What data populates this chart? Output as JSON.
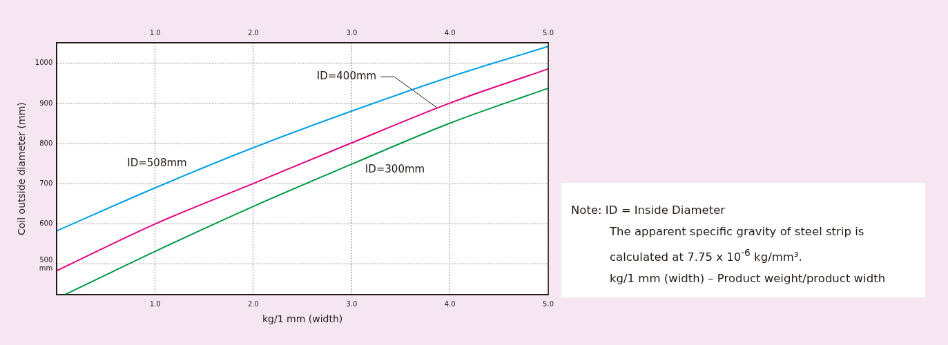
{
  "chart_data": {
    "type": "line",
    "xlabel": "kg/1 mm (width)",
    "ylabel": "Coil outside diameter (mm)",
    "xlim": [
      0,
      5
    ],
    "xticks": [
      {
        "value": 1,
        "label": "1.0"
      },
      {
        "value": 2,
        "label": "2.0"
      },
      {
        "value": 3,
        "label": "3.0"
      },
      {
        "value": 4,
        "label": "4.0"
      },
      {
        "value": 5,
        "label": "5.0"
      }
    ],
    "x2lim": [
      0,
      5
    ],
    "x2ticks": [
      {
        "value": 1,
        "label": "1.0"
      },
      {
        "value": 2,
        "label": "2.0"
      },
      {
        "value": 3,
        "label": "3.0"
      },
      {
        "value": 4,
        "label": "4.0"
      },
      {
        "value": 5,
        "label": "5.0"
      }
    ],
    "ylim": [
      424,
      1051
    ],
    "yticks": [
      {
        "value": 500,
        "label": "500\nmm"
      },
      600,
      700,
      800,
      900,
      1000
    ],
    "grid": true,
    "legend": false,
    "marker": "none",
    "line_style": "solid",
    "series": [
      {
        "color": "#00a0e9",
        "x": [
          0,
          1,
          2,
          3,
          4,
          5
        ],
        "values": [
          583,
          690,
          790,
          881,
          966,
          1042
        ]
      },
      {
        "color": "#e4007f",
        "x": [
          0,
          1,
          2,
          3,
          4,
          5
        ],
        "values": [
          484,
          600,
          701,
          802,
          901,
          986
        ]
      },
      {
        "color": "#009944",
        "x": [
          0.08,
          1,
          2,
          3,
          4,
          5
        ],
        "values": [
          424,
          532,
          644,
          749,
          851,
          938
        ]
      }
    ],
    "annotations": [
      {
        "text": "ID=508mm",
        "x": 1.02,
        "y": 692
      },
      {
        "text": "ID=400mm",
        "x": 3.87,
        "y": 889
      },
      {
        "text": "ID=300mm",
        "x": 3.44,
        "y": 794
      },
      "Note: ID = Inside Diameter",
      "The apparent specific gravity of steel strip is calculated at 7.75 x 10$^{-6}$ kg/mm³.",
      "kg/1 mm (width) – Product weight/product width"
    ]
  }
}
